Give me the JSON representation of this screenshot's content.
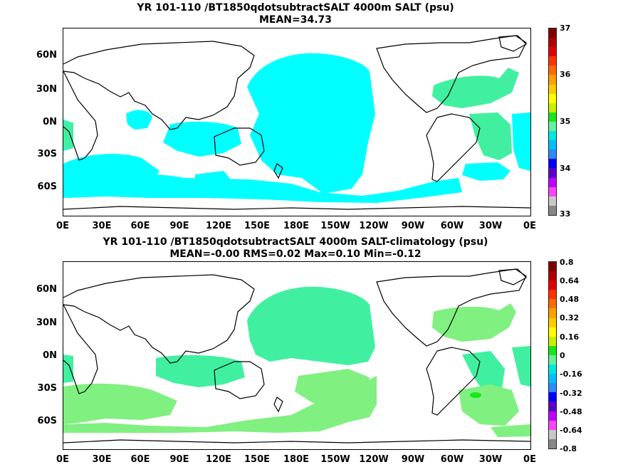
{
  "panel1": {
    "title_line1": "YR 101-110 /BT1850qdotsubtractSALT 4000m SALT (psu)",
    "title_line2": "MEAN=34.73",
    "colorbar_labels": [
      "37",
      "36",
      "35",
      "34",
      "33"
    ],
    "colors": [
      "#7f0000",
      "#b00000",
      "#e00000",
      "#ff3000",
      "#ff6a00",
      "#ff9f00",
      "#ffcc00",
      "#ffff00",
      "#c8f000",
      "#18e818",
      "#66f09a",
      "#00e8e0",
      "#00c0ff",
      "#2a8cff",
      "#0000ff",
      "#5a00c8",
      "#c000ff",
      "#ff44ff",
      "#c8c8c8",
      "#888888"
    ]
  },
  "panel2": {
    "title_line1": "YR 101-110 /BT1850qdotsubtractSALT 4000m SALT-climatology (psu)",
    "title_line2": "MEAN=-0.00   RMS=0.02   Max=0.10   Min=-0.12",
    "colorbar_labels": [
      "0.8",
      "0.64",
      "0.48",
      "0.32",
      "0.16",
      "0",
      "-0.16",
      "-0.32",
      "-0.48",
      "-0.64",
      "-0.8"
    ],
    "colors": [
      "#7f0000",
      "#b00000",
      "#e00000",
      "#ff3000",
      "#ff6a00",
      "#ff9f00",
      "#ffcc00",
      "#ffff00",
      "#c8f000",
      "#18e818",
      "#66f09a",
      "#00e8e0",
      "#00c0ff",
      "#2a8cff",
      "#0000ff",
      "#5a00c8",
      "#c000ff",
      "#ff44ff",
      "#c8c8c8",
      "#888888"
    ]
  },
  "axes": {
    "lat_labels": [
      "60N",
      "30N",
      "0N",
      "30S",
      "60S"
    ],
    "lon_labels": [
      "0E",
      "30E",
      "60E",
      "90E",
      "120E",
      "150E",
      "180E",
      "150W",
      "120W",
      "90W",
      "60W",
      "30W",
      "0E"
    ]
  },
  "field_colors": {
    "cyan": "#00ffff",
    "light_green": "#80f080",
    "mint": "#40f0a0",
    "green": "#18e818"
  }
}
